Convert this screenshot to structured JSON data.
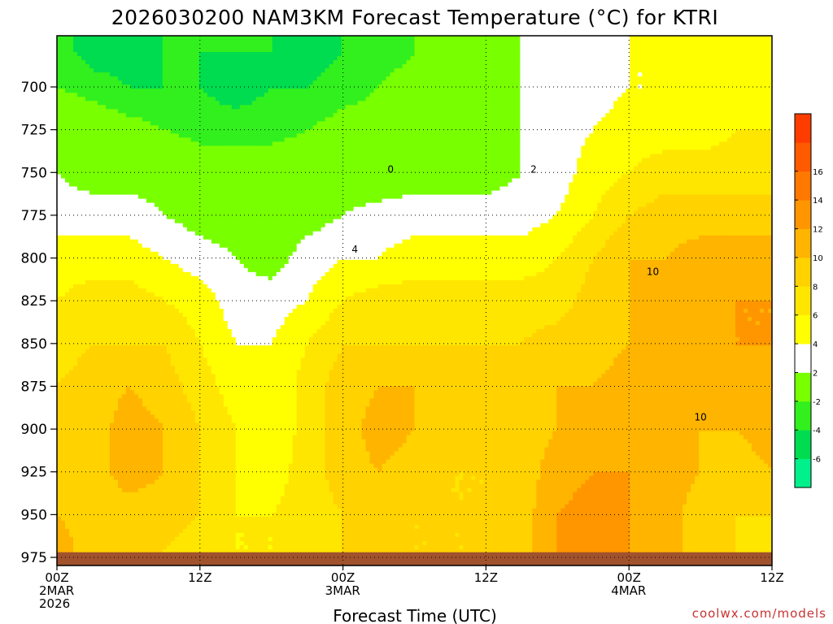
{
  "chart_data": {
    "type": "heatmap",
    "title": "2026030200 NAM3KM Forecast Temperature (°C) for KTRI",
    "xlabel": "Forecast Time (UTC)",
    "ylabel": "",
    "y_unit": "hPa",
    "y_ticks": [
      700,
      725,
      750,
      775,
      800,
      825,
      850,
      875,
      900,
      925,
      950,
      975
    ],
    "ylim": [
      980,
      673
    ],
    "x_hours": [
      0,
      12,
      24,
      36,
      48,
      60
    ],
    "x_tick_labels": [
      [
        "00Z",
        "2MAR",
        "2026"
      ],
      [
        "12Z"
      ],
      [
        "00Z",
        "3MAR"
      ],
      [
        "12Z"
      ],
      [
        "00Z",
        "4MAR"
      ],
      [
        "12Z"
      ]
    ],
    "xlim": [
      0,
      60
    ],
    "grid": true,
    "colorbar": {
      "position": "right",
      "levels": [
        -8,
        -6,
        -4,
        -2,
        2,
        4,
        6,
        8,
        10,
        12,
        14,
        16,
        18
      ],
      "tick_labels": [
        "-6",
        "-4",
        "-2",
        "2",
        "4",
        "6",
        "8",
        "10",
        "12",
        "14",
        "16"
      ],
      "colors": [
        "#00f08c",
        "#00dc50",
        "#32f01e",
        "#78ff00",
        "#ffffff",
        "#ffff00",
        "#ffe600",
        "#ffd200",
        "#ffb400",
        "#ff9600",
        "#ff7800",
        "#ff5a00",
        "#ff3c00"
      ]
    },
    "ground_color": "#a0522d",
    "ground_top_hpa": 972,
    "times": [
      0,
      3,
      6,
      9,
      12,
      15,
      18,
      21,
      24,
      27,
      30,
      33,
      36,
      39,
      42,
      45,
      48,
      51,
      54,
      57,
      60
    ],
    "levels_hpa": [
      680,
      700,
      725,
      750,
      775,
      800,
      825,
      850,
      875,
      900,
      925,
      950,
      970
    ],
    "temperature": [
      [
        -3,
        -5,
        -5,
        -4,
        -4,
        -4,
        -4,
        -5,
        -4,
        -3,
        -2,
        -1,
        1,
        2,
        3,
        3,
        4,
        4,
        4,
        5,
        5
      ],
      [
        -2,
        -3,
        -4,
        -4,
        -4,
        -5,
        -4,
        -4,
        -3,
        -2,
        -1,
        0,
        1,
        2,
        3,
        3,
        4,
        4,
        5,
        5,
        5
      ],
      [
        1,
        0,
        -1,
        -2,
        -3,
        -3,
        -3,
        -2,
        -1,
        -1,
        0,
        0,
        1,
        2,
        3,
        4,
        5,
        5,
        5,
        6,
        6
      ],
      [
        2,
        1,
        1,
        1,
        0,
        0,
        0,
        0,
        0,
        0,
        1,
        1,
        1,
        2,
        3,
        5,
        6,
        7,
        7,
        7,
        7
      ],
      [
        3,
        3,
        3,
        2,
        1,
        1,
        0,
        1,
        2,
        3,
        3,
        3,
        3,
        3,
        4,
        6,
        8,
        9,
        9,
        9,
        9
      ],
      [
        5,
        5,
        5,
        4,
        3,
        2,
        1,
        3,
        4,
        4,
        5,
        5,
        5,
        5,
        6,
        8,
        10,
        10,
        11,
        11,
        11
      ],
      [
        6,
        7,
        7,
        6,
        5,
        3,
        3,
        4,
        6,
        7,
        7,
        7,
        7,
        7,
        7,
        9,
        10,
        11,
        11,
        12,
        12
      ],
      [
        7,
        8,
        8,
        8,
        6,
        4,
        4,
        6,
        8,
        8,
        8,
        8,
        8,
        8,
        9,
        9,
        10,
        11,
        11,
        12,
        12
      ],
      [
        8,
        9,
        10,
        9,
        7,
        5,
        4,
        7,
        9,
        10,
        10,
        9,
        9,
        9,
        10,
        10,
        11,
        11,
        11,
        11,
        11
      ],
      [
        8,
        9,
        11,
        10,
        8,
        6,
        4,
        7,
        9,
        11,
        10,
        10,
        9,
        9,
        10,
        11,
        11,
        11,
        10,
        10,
        11
      ],
      [
        9,
        9,
        11,
        10,
        8,
        6,
        5,
        7,
        9,
        10,
        9,
        8,
        8,
        9,
        11,
        12,
        12,
        11,
        10,
        9,
        10
      ],
      [
        10,
        9,
        9,
        9,
        8,
        6,
        6,
        7,
        8,
        9,
        8,
        8,
        8,
        9,
        12,
        13,
        12,
        11,
        9,
        8,
        8
      ],
      [
        11,
        9,
        8,
        8,
        7,
        6,
        6,
        7,
        8,
        8,
        8,
        8,
        8,
        9,
        12,
        13,
        12,
        11,
        9,
        8,
        7
      ]
    ]
  },
  "credit": "coolwx.com/models"
}
